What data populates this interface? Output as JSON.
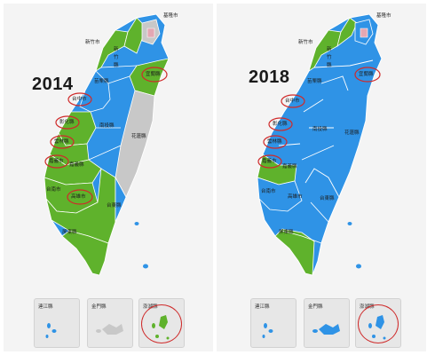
{
  "colors": {
    "kmt_blue": "#2f93e6",
    "dpp_green": "#5fb22c",
    "independent_grey": "#c8c8c8",
    "capital_pink": "#e3a7b3",
    "highlight_red": "#cf2a2a"
  },
  "panels": [
    {
      "year": "2014",
      "labels": {
        "keelung": "基隆市",
        "new_taipei": "新竹市",
        "taoyuan_a": "新",
        "taoyuan_b": "竹",
        "taoyuan_c": "縣",
        "miaoli": "苗栗縣",
        "yilan": "宜蘭縣",
        "taichung": "台中市",
        "changhua": "彰化縣",
        "nantou": "南投縣",
        "hualien": "花蓮縣",
        "yunlin": "雲林縣",
        "chiayi_city": "嘉義市",
        "chiayi_county": "嘉義縣",
        "tainan": "台南市",
        "kaohsiung": "高雄市",
        "taitung": "台東縣",
        "pingtung": "屏東縣"
      },
      "insets": [
        "連江縣",
        "金門縣",
        "澎湖縣"
      ]
    },
    {
      "year": "2018",
      "labels": {
        "keelung": "基隆市",
        "new_taipei": "新竹市",
        "taoyuan_a": "新",
        "taoyuan_b": "竹",
        "taoyuan_c": "縣",
        "miaoli": "苗栗縣",
        "yilan": "宜蘭縣",
        "taichung": "台中市",
        "changhua": "彰化縣",
        "nantou": "南投縣",
        "hualien": "花蓮縣",
        "yunlin": "雲林縣",
        "chiayi_city": "嘉義市",
        "chiayi_county": "嘉義縣",
        "tainan": "台南市",
        "kaohsiung": "高雄市",
        "taitung": "台東縣",
        "pingtung": "屏東縣"
      },
      "insets": [
        "連江縣",
        "金門縣",
        "澎湖縣"
      ]
    }
  ]
}
